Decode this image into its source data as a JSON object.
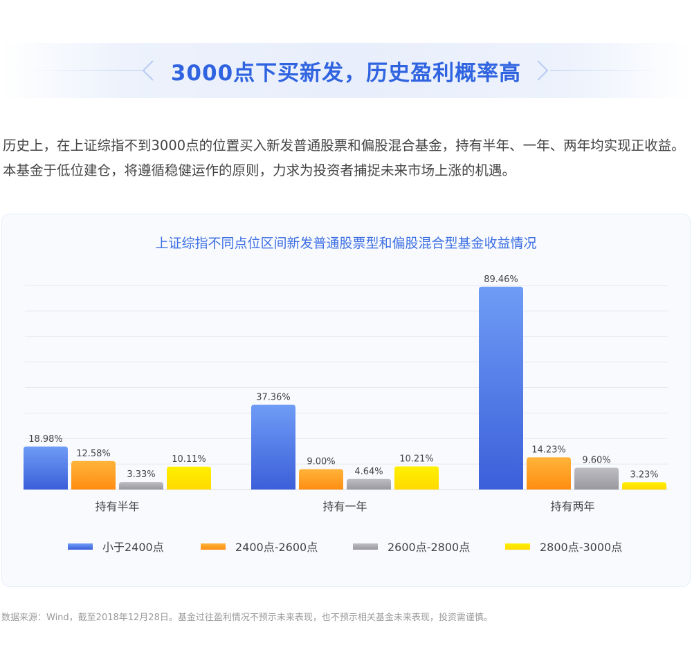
{
  "header": {
    "title": "3000点下买新发，历史盈利概率高"
  },
  "intro": {
    "text": "历史上，在上证综指不到3000点的位置买入新发普通股票和偏股混合基金，持有半年、一年、两年均实现正收益。本基金于低位建仓，将遵循稳健运作的原则，力求为投资者捕捉未来市场上涨的机遇。"
  },
  "chart_data": {
    "type": "bar",
    "title": "上证综指不同点位区间新发普通股票型和偏股混合型基金收益情况",
    "categories": [
      "持有半年",
      "持有一年",
      "持有两年"
    ],
    "series": [
      {
        "name": "小于2400点",
        "values": [
          18.98,
          37.36,
          89.46
        ],
        "labels": [
          "18.98%",
          "37.36%",
          "89.46%"
        ],
        "color": "#4a78e8"
      },
      {
        "name": "2400点-2600点",
        "values": [
          12.58,
          9.0,
          14.23
        ],
        "labels": [
          "12.58%",
          "9.00%",
          "14.23%"
        ],
        "color": "#ff9f1c"
      },
      {
        "name": "2600点-2800点",
        "values": [
          3.33,
          4.64,
          9.6
        ],
        "labels": [
          "3.33%",
          "4.64%",
          "9.60%"
        ],
        "color": "#a9a9af"
      },
      {
        "name": "2800点-3000点",
        "values": [
          10.11,
          10.21,
          3.23
        ],
        "labels": [
          "10.11%",
          "10.21%",
          "3.23%"
        ],
        "color": "#ffe500"
      }
    ],
    "ylim": [
      0,
      90
    ],
    "grid": true,
    "legend_position": "bottom",
    "xlabel": "",
    "ylabel": ""
  },
  "footer": {
    "source": "数据来源：Wind，截至2018年12月28日。基金过往盈利情况不预示未来表现，也不预示相关基金未来表现，投资需谨慎。"
  }
}
